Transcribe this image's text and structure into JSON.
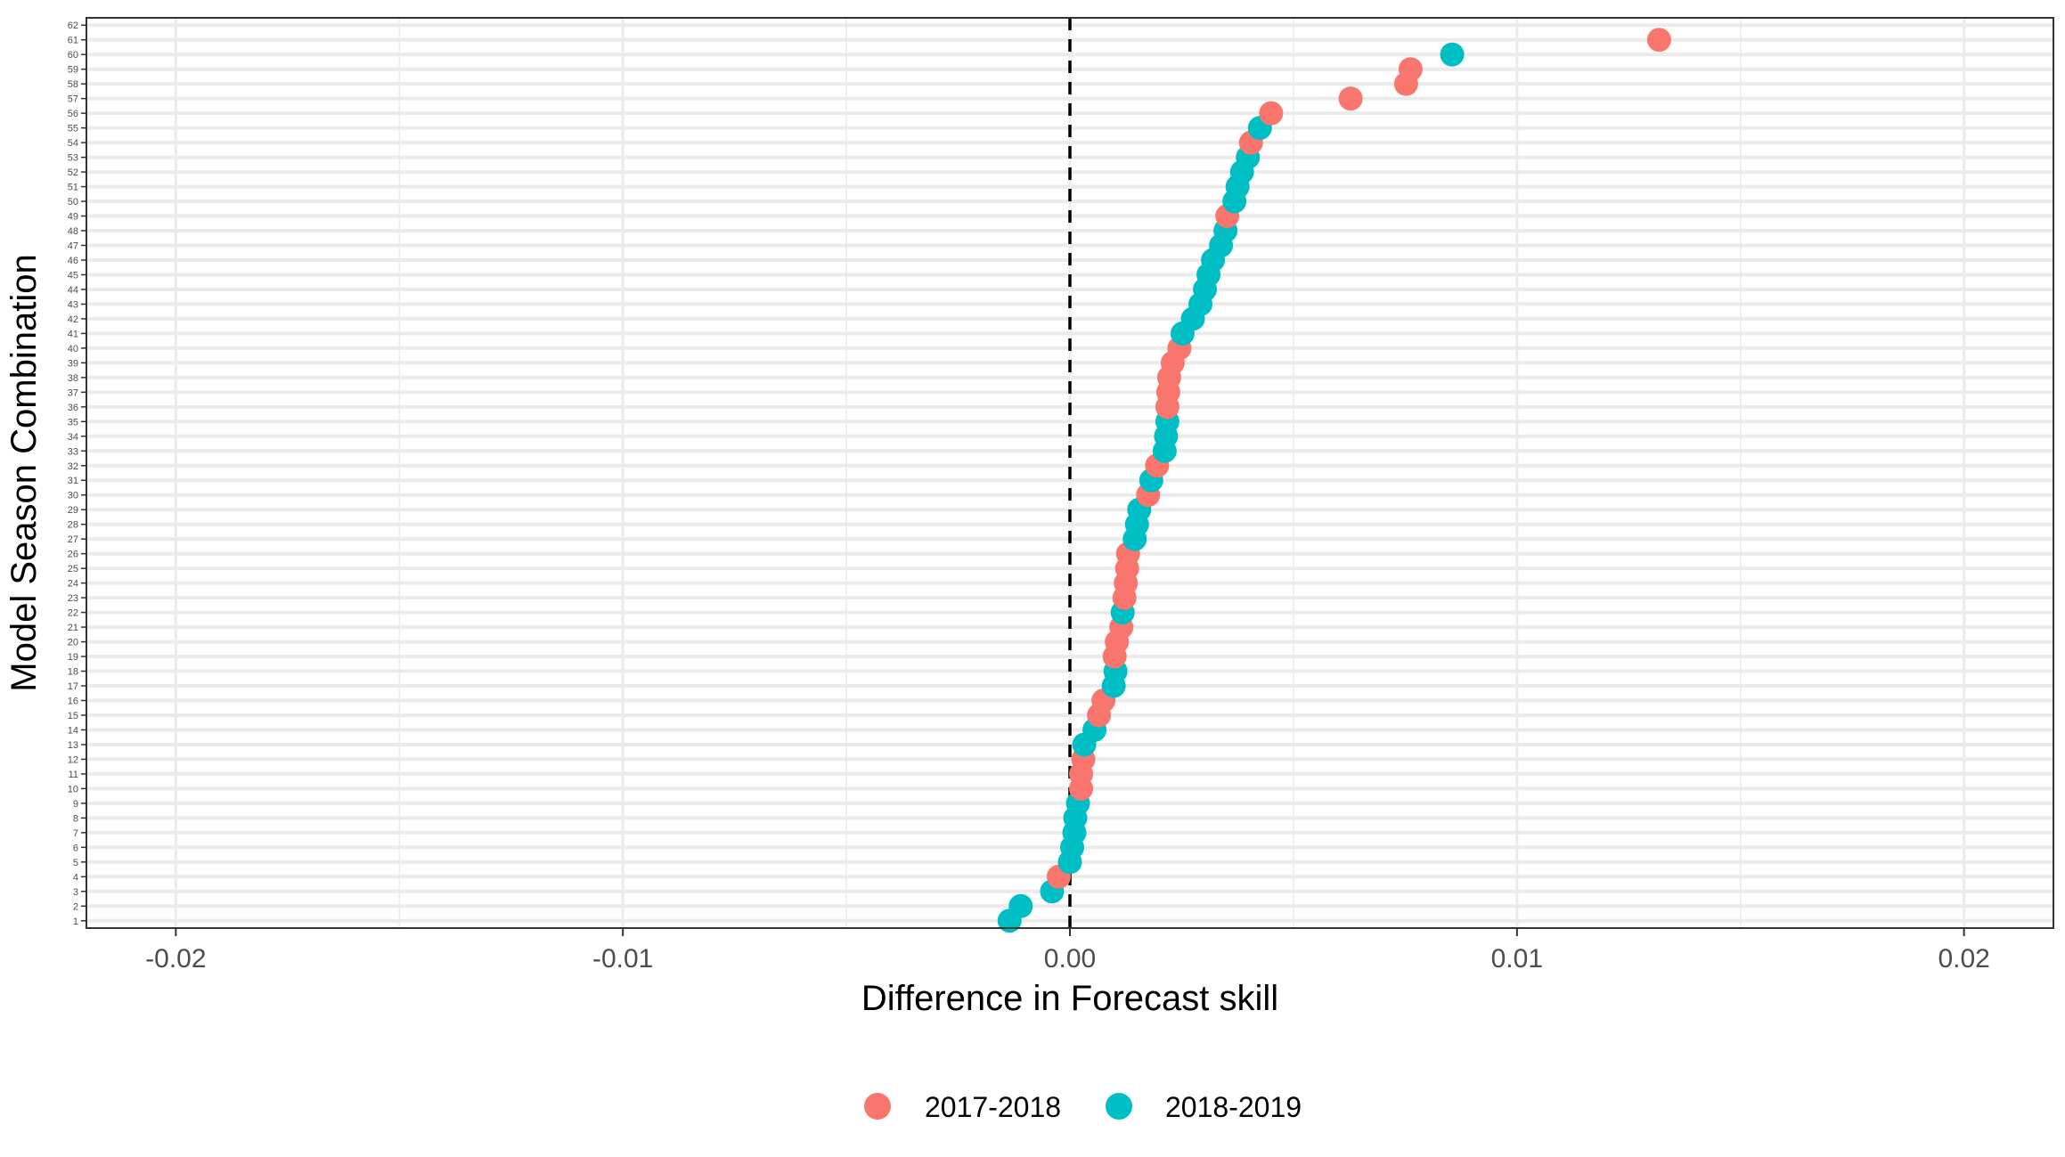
{
  "chart_data": {
    "type": "scatter",
    "xlabel": "Difference in Forecast skill",
    "ylabel": "Model Season Combination",
    "xlim": [
      -0.022,
      0.022
    ],
    "ylim": [
      0.5,
      62.5
    ],
    "x_ticks": [
      -0.02,
      -0.01,
      0.0,
      0.01,
      0.02
    ],
    "x_tick_labels": [
      "-0.02",
      "-0.01",
      "0.00",
      "0.01",
      "0.02"
    ],
    "y_categories": [
      "1",
      "2",
      "3",
      "4",
      "5",
      "6",
      "7",
      "8",
      "9",
      "10",
      "11",
      "12",
      "13",
      "14",
      "15",
      "16",
      "17",
      "18",
      "19",
      "20",
      "21",
      "22",
      "23",
      "24",
      "25",
      "26",
      "27",
      "28",
      "29",
      "30",
      "31",
      "32",
      "33",
      "34",
      "35",
      "36",
      "37",
      "38",
      "39",
      "40",
      "41",
      "42",
      "43",
      "44",
      "45",
      "46",
      "47",
      "48",
      "49",
      "50",
      "51",
      "52",
      "53",
      "54",
      "55",
      "56",
      "57",
      "58",
      "59",
      "60",
      "61",
      "62"
    ],
    "reference_line_x": 0,
    "grid": true,
    "legend_position": "bottom",
    "colors": {
      "2017-2018": "#F8766D",
      "2018-2019": "#00BFC4"
    },
    "series": [
      {
        "name": "2017-2018",
        "points": [
          {
            "y": 4,
            "x": -0.00025
          },
          {
            "y": 10,
            "x": 0.00025
          },
          {
            "y": 11,
            "x": 0.00025
          },
          {
            "y": 12,
            "x": 0.0003
          },
          {
            "y": 15,
            "x": 0.00065
          },
          {
            "y": 16,
            "x": 0.00075
          },
          {
            "y": 19,
            "x": 0.001
          },
          {
            "y": 20,
            "x": 0.00105
          },
          {
            "y": 21,
            "x": 0.00115
          },
          {
            "y": 23,
            "x": 0.00122
          },
          {
            "y": 24,
            "x": 0.00125
          },
          {
            "y": 25,
            "x": 0.00128
          },
          {
            "y": 26,
            "x": 0.0013
          },
          {
            "y": 30,
            "x": 0.00175
          },
          {
            "y": 32,
            "x": 0.00195
          },
          {
            "y": 36,
            "x": 0.00218
          },
          {
            "y": 37,
            "x": 0.0022
          },
          {
            "y": 38,
            "x": 0.00222
          },
          {
            "y": 39,
            "x": 0.0023
          },
          {
            "y": 40,
            "x": 0.00245
          },
          {
            "y": 49,
            "x": 0.00352
          },
          {
            "y": 54,
            "x": 0.00405
          },
          {
            "y": 56,
            "x": 0.0045
          },
          {
            "y": 57,
            "x": 0.00628
          },
          {
            "y": 58,
            "x": 0.00752
          },
          {
            "y": 59,
            "x": 0.00762
          },
          {
            "y": 61,
            "x": 0.01318
          }
        ]
      },
      {
        "name": "2018-2019",
        "points": [
          {
            "y": 1,
            "x": -0.00135
          },
          {
            "y": 2,
            "x": -0.0011
          },
          {
            "y": 3,
            "x": -0.0004
          },
          {
            "y": 5,
            "x": 0.0
          },
          {
            "y": 6,
            "x": 5e-05
          },
          {
            "y": 7,
            "x": 0.0001
          },
          {
            "y": 8,
            "x": 0.00012
          },
          {
            "y": 9,
            "x": 0.00018
          },
          {
            "y": 13,
            "x": 0.00032
          },
          {
            "y": 14,
            "x": 0.00055
          },
          {
            "y": 17,
            "x": 0.00098
          },
          {
            "y": 18,
            "x": 0.00102
          },
          {
            "y": 22,
            "x": 0.00118
          },
          {
            "y": 27,
            "x": 0.00145
          },
          {
            "y": 28,
            "x": 0.0015
          },
          {
            "y": 29,
            "x": 0.00155
          },
          {
            "y": 31,
            "x": 0.00182
          },
          {
            "y": 33,
            "x": 0.00212
          },
          {
            "y": 34,
            "x": 0.00215
          },
          {
            "y": 35,
            "x": 0.00218
          },
          {
            "y": 41,
            "x": 0.00252
          },
          {
            "y": 42,
            "x": 0.00275
          },
          {
            "y": 43,
            "x": 0.00292
          },
          {
            "y": 44,
            "x": 0.00302
          },
          {
            "y": 45,
            "x": 0.0031
          },
          {
            "y": 46,
            "x": 0.0032
          },
          {
            "y": 47,
            "x": 0.00338
          },
          {
            "y": 48,
            "x": 0.00348
          },
          {
            "y": 50,
            "x": 0.00368
          },
          {
            "y": 51,
            "x": 0.00375
          },
          {
            "y": 52,
            "x": 0.00385
          },
          {
            "y": 53,
            "x": 0.00398
          },
          {
            "y": 55,
            "x": 0.00425
          },
          {
            "y": 60,
            "x": 0.00855
          }
        ]
      }
    ],
    "legend": [
      "2017-2018",
      "2018-2019"
    ]
  }
}
